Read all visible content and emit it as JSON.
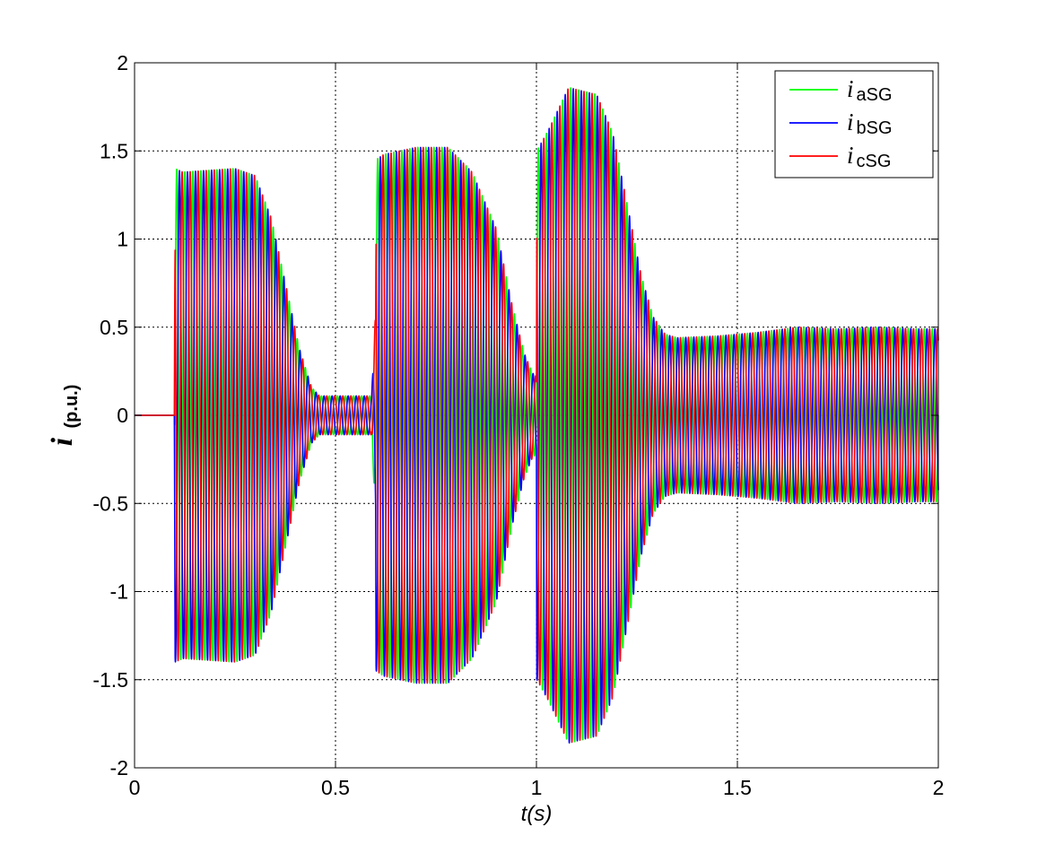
{
  "chart_data": {
    "type": "line",
    "xlabel": "t(s)",
    "ylabel": {
      "main": "i",
      "sub": "(p.u.)"
    },
    "xlim": [
      0,
      2
    ],
    "ylim": [
      -2,
      2
    ],
    "xticks": [
      {
        "value": 0,
        "label": "0"
      },
      {
        "value": 0.5,
        "label": "0.5"
      },
      {
        "value": 1,
        "label": "1"
      },
      {
        "value": 1.5,
        "label": "1.5"
      },
      {
        "value": 2,
        "label": "2"
      }
    ],
    "yticks": [
      {
        "value": 2,
        "label": "2"
      },
      {
        "value": 1.5,
        "label": "1.5"
      },
      {
        "value": 1,
        "label": "1"
      },
      {
        "value": 0.5,
        "label": "0.5"
      },
      {
        "value": 0,
        "label": "0"
      },
      {
        "value": -0.5,
        "label": "-0.5"
      },
      {
        "value": -1,
        "label": "-1"
      },
      {
        "value": -1.5,
        "label": "-1.5"
      },
      {
        "value": -2,
        "label": "-2"
      }
    ],
    "grid": true,
    "grid_style": "dotted",
    "legend_position": "top-right",
    "signal_frequency_hz": 50,
    "phase_shift_deg": [
      0,
      -120,
      120
    ],
    "envelope": {
      "t": [
        0,
        0.099,
        0.1,
        0.101,
        0.12,
        0.25,
        0.3,
        0.34,
        0.38,
        0.41,
        0.44,
        0.46,
        0.5,
        0.59,
        0.6,
        0.601,
        0.62,
        0.7,
        0.78,
        0.84,
        0.9,
        0.94,
        0.97,
        0.99,
        1.0,
        1.001,
        1.03,
        1.08,
        1.15,
        1.19,
        1.23,
        1.26,
        1.29,
        1.32,
        1.35,
        1.45,
        1.55,
        1.65,
        1.75,
        1.85,
        1.95,
        2.0
      ],
      "amplitude": [
        0,
        0,
        0.7,
        1.4,
        1.38,
        1.4,
        1.36,
        1.12,
        0.7,
        0.38,
        0.16,
        0.11,
        0.11,
        0.11,
        0.6,
        1.45,
        1.48,
        1.52,
        1.52,
        1.38,
        1.06,
        0.62,
        0.35,
        0.24,
        0.22,
        1.5,
        1.62,
        1.86,
        1.82,
        1.6,
        1.15,
        0.8,
        0.56,
        0.46,
        0.44,
        0.45,
        0.47,
        0.5,
        0.49,
        0.5,
        0.49,
        0.49
      ]
    },
    "series": [
      {
        "name": "aSG",
        "color": "#00ff00"
      },
      {
        "name": "bSG",
        "color": "#0000ff"
      },
      {
        "name": "cSG",
        "color": "#ff0000"
      }
    ]
  },
  "legend": {
    "entries": [
      {
        "symbol": "i",
        "sub": "aSG"
      },
      {
        "symbol": "i",
        "sub": "bSG"
      },
      {
        "symbol": "i",
        "sub": "cSG"
      }
    ]
  }
}
